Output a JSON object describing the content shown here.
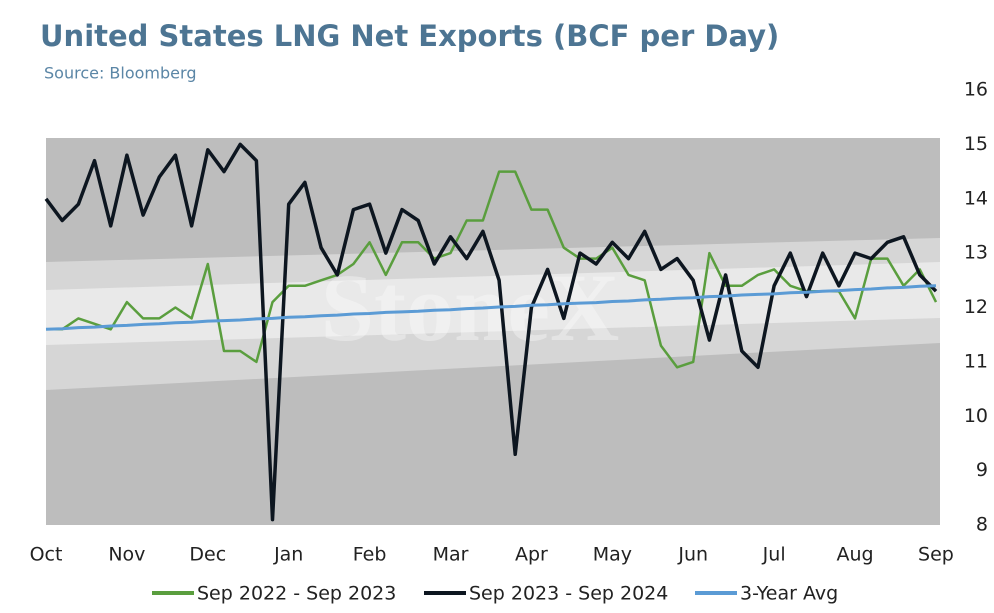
{
  "chart_data": {
    "type": "line",
    "title": "United States LNG Net Exports (BCF per Day)",
    "subtitle": "Source: Bloomberg",
    "watermark": "StoneX",
    "x": [
      0,
      0.2,
      0.4,
      0.6,
      0.8,
      1.0,
      1.2,
      1.4,
      1.6,
      1.8,
      2.0,
      2.2,
      2.4,
      2.6,
      2.8,
      3.0,
      3.2,
      3.4,
      3.6,
      3.8,
      4.0,
      4.2,
      4.4,
      4.6,
      4.8,
      5.0,
      5.2,
      5.4,
      5.6,
      5.8,
      6.0,
      6.2,
      6.4,
      6.6,
      6.8,
      7.0,
      7.2,
      7.4,
      7.6,
      7.8,
      8.0,
      8.2,
      8.4,
      8.6,
      8.8,
      9.0,
      9.2,
      9.4,
      9.6,
      9.8,
      10.0,
      10.2,
      10.4,
      10.6,
      10.8,
      11.0
    ],
    "xlim": [
      0,
      11.05
    ],
    "xticks": [
      {
        "value": 0,
        "label": "Oct"
      },
      {
        "value": 1,
        "label": "Nov"
      },
      {
        "value": 2,
        "label": "Dec"
      },
      {
        "value": 3,
        "label": "Jan"
      },
      {
        "value": 4,
        "label": "Feb"
      },
      {
        "value": 5,
        "label": "Mar"
      },
      {
        "value": 6,
        "label": "Apr"
      },
      {
        "value": 7,
        "label": "May"
      },
      {
        "value": 8,
        "label": "Jun"
      },
      {
        "value": 9,
        "label": "Jul"
      },
      {
        "value": 10,
        "label": "Aug"
      },
      {
        "value": 11,
        "label": "Sep"
      }
    ],
    "ylim": [
      8,
      16
    ],
    "yticks": [
      8,
      9,
      10,
      11,
      12,
      13,
      14,
      15,
      16
    ],
    "grid": false,
    "legend": "bottom",
    "series": [
      {
        "name": "Sep 2022 - Sep 2023",
        "color": "#5a9e3e",
        "width": 2.5,
        "values": [
          11.6,
          11.6,
          11.8,
          11.7,
          11.6,
          12.1,
          11.8,
          11.8,
          12.0,
          11.8,
          12.8,
          11.2,
          11.2,
          11.0,
          12.1,
          12.4,
          12.4,
          12.5,
          12.6,
          12.8,
          13.2,
          12.6,
          13.2,
          13.2,
          12.9,
          13.0,
          13.6,
          13.6,
          14.5,
          14.5,
          13.8,
          13.8,
          13.1,
          12.9,
          12.9,
          13.1,
          12.6,
          12.5,
          11.3,
          10.9,
          11.0,
          13.0,
          12.4,
          12.4,
          12.6,
          12.7,
          12.4,
          12.3,
          12.3,
          12.3,
          11.8,
          12.9,
          12.9,
          12.4,
          12.7,
          12.1
        ]
      },
      {
        "name": "Sep 2023 - Sep 2024",
        "color": "#0d1620",
        "width": 3.5,
        "values": [
          14.0,
          13.6,
          13.9,
          14.7,
          13.5,
          14.8,
          13.7,
          14.4,
          14.8,
          13.5,
          14.9,
          14.5,
          15.0,
          14.7,
          8.1,
          13.9,
          14.3,
          13.1,
          12.6,
          13.8,
          13.9,
          13.0,
          13.8,
          13.6,
          12.8,
          13.3,
          12.9,
          13.4,
          12.5,
          9.3,
          12.0,
          12.7,
          11.8,
          13.0,
          12.8,
          13.2,
          12.9,
          13.4,
          12.7,
          12.9,
          12.5,
          11.4,
          12.6,
          11.2,
          10.9,
          12.4,
          13.0,
          12.2,
          13.0,
          12.4,
          13.0,
          12.9,
          13.2,
          13.3,
          12.6,
          12.3
        ]
      },
      {
        "name": "3-Year Avg",
        "color": "#5b9bd5",
        "width": 3,
        "values": [
          11.6,
          11.61,
          11.63,
          11.64,
          11.66,
          11.67,
          11.69,
          11.7,
          11.72,
          11.73,
          11.75,
          11.76,
          11.77,
          11.79,
          11.8,
          11.82,
          11.83,
          11.85,
          11.86,
          11.88,
          11.89,
          11.91,
          11.92,
          11.93,
          11.95,
          11.96,
          11.98,
          11.99,
          12.01,
          12.02,
          12.04,
          12.05,
          12.07,
          12.08,
          12.09,
          12.11,
          12.12,
          12.14,
          12.15,
          12.17,
          12.18,
          12.2,
          12.21,
          12.23,
          12.24,
          12.25,
          12.27,
          12.28,
          12.3,
          12.31,
          12.33,
          12.34,
          12.36,
          12.37,
          12.39,
          12.4
        ]
      }
    ]
  }
}
